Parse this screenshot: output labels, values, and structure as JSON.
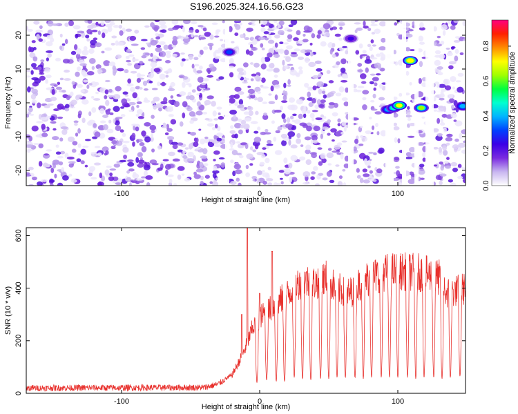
{
  "figure": {
    "title": "S196.2025.324.16.56.G23"
  },
  "chart_data": [
    {
      "type": "heatmap",
      "title": "S196.2025.324.16.56.G23",
      "xlabel": "Height of straight line (km)",
      "ylabel": "Frequency (Hz)",
      "xlim": [
        -169,
        149
      ],
      "ylim": [
        -24.5,
        24.5
      ],
      "x_ticks": [
        -100,
        0,
        100
      ],
      "y_ticks": [
        -20,
        -10,
        0,
        10,
        20
      ],
      "colorbar": {
        "label": "Normalized spectral amplitude",
        "range": [
          0,
          0.95
        ],
        "ticks": [
          0.0,
          0.2,
          0.4,
          0.6,
          0.8
        ],
        "colormap": [
          "#ffffff",
          "#c8b6f0",
          "#7a2be0",
          "#3b00e6",
          "#0040ff",
          "#00b4ff",
          "#00ffd0",
          "#00ff40",
          "#a0ff00",
          "#ffff00",
          "#ff8c00",
          "#ff2000",
          "#ff0080"
        ]
      },
      "bands": [
        {
          "x_range": [
            -25,
            -22
          ],
          "value": 0.0
        },
        {
          "x_range": [
            64,
            68
          ],
          "value": 0.03
        },
        {
          "x_range": [
            91,
            97
          ],
          "value": 0.0
        },
        {
          "x_range": [
            103,
            106
          ],
          "value": 0.0
        },
        {
          "x_range": [
            112,
            115
          ],
          "value": 0.0
        },
        {
          "x_range": [
            120,
            126
          ],
          "value": 0.0
        }
      ],
      "peaks": [
        {
          "x": -22,
          "y": 15,
          "value": 0.35
        },
        {
          "x": 66,
          "y": 19,
          "value": 0.3
        },
        {
          "x": 93,
          "y": -2,
          "value": 0.5
        },
        {
          "x": 97,
          "y": -1.5,
          "value": 0.6
        },
        {
          "x": 101,
          "y": -0.8,
          "value": 0.85
        },
        {
          "x": 109,
          "y": 12.5,
          "value": 0.92
        },
        {
          "x": 117,
          "y": -1.5,
          "value": 0.75
        },
        {
          "x": 147,
          "y": -1,
          "value": 0.5
        }
      ]
    },
    {
      "type": "line",
      "xlabel": "Height of straight line (km)",
      "ylabel": "SNR (10 * v/v)",
      "xlim": [
        -169,
        149
      ],
      "ylim": [
        0,
        630
      ],
      "x_ticks": [
        -100,
        0,
        100
      ],
      "y_ticks": [
        0,
        200,
        400,
        600
      ],
      "color": "#e8302c",
      "profile": [
        {
          "x": -169,
          "y": 20
        },
        {
          "x": -40,
          "y": 22
        },
        {
          "x": -30,
          "y": 35
        },
        {
          "x": -20,
          "y": 70
        },
        {
          "x": -12,
          "y": 150
        },
        {
          "x": -5,
          "y": 250
        },
        {
          "x": 0,
          "y": 290
        },
        {
          "x": 10,
          "y": 330
        },
        {
          "x": 25,
          "y": 400
        },
        {
          "x": 30,
          "y": 430
        },
        {
          "x": 40,
          "y": 420
        },
        {
          "x": 48,
          "y": 440
        },
        {
          "x": 55,
          "y": 400
        },
        {
          "x": 65,
          "y": 380
        },
        {
          "x": 75,
          "y": 430
        },
        {
          "x": 90,
          "y": 460
        },
        {
          "x": 100,
          "y": 465
        },
        {
          "x": 115,
          "y": 460
        },
        {
          "x": 130,
          "y": 440
        },
        {
          "x": 135,
          "y": 380
        },
        {
          "x": 149,
          "y": 400
        }
      ],
      "spikes": [
        {
          "x": -9,
          "y": 630
        },
        {
          "x": 9,
          "y": 540
        },
        {
          "x": -13,
          "y": 300
        },
        {
          "x": 0,
          "y": 380
        }
      ],
      "dips": [
        {
          "x": -2,
          "y": 40
        },
        {
          "x": 5,
          "y": 50
        },
        {
          "x": 12,
          "y": 45
        },
        {
          "x": 18,
          "y": 45
        },
        {
          "x": 25,
          "y": 60
        },
        {
          "x": 31,
          "y": 55
        },
        {
          "x": 37,
          "y": 50
        },
        {
          "x": 44,
          "y": 55
        },
        {
          "x": 50,
          "y": 55
        },
        {
          "x": 56,
          "y": 60
        },
        {
          "x": 62,
          "y": 60
        },
        {
          "x": 69,
          "y": 60
        },
        {
          "x": 75,
          "y": 55
        },
        {
          "x": 81,
          "y": 60
        },
        {
          "x": 88,
          "y": 60
        },
        {
          "x": 94,
          "y": 60
        },
        {
          "x": 100,
          "y": 60
        },
        {
          "x": 107,
          "y": 60
        },
        {
          "x": 113,
          "y": 55
        },
        {
          "x": 119,
          "y": 60
        },
        {
          "x": 126,
          "y": 60
        },
        {
          "x": 132,
          "y": 55
        },
        {
          "x": 138,
          "y": 60
        },
        {
          "x": 145,
          "y": 65
        }
      ]
    }
  ]
}
